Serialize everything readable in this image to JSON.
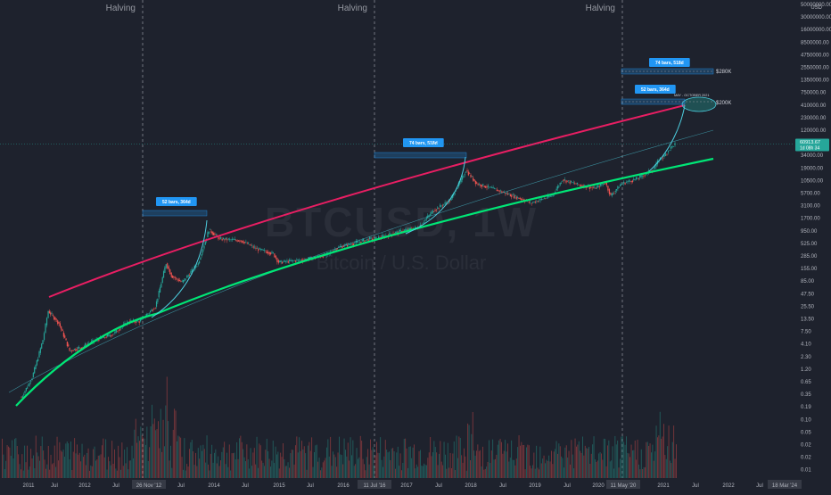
{
  "chart_data": {
    "type": "candlestick",
    "title": "",
    "watermark": {
      "symbol": "BTCUSD, 1W",
      "description": "Bitcoin / U.S. Dollar"
    },
    "y_axis": {
      "scale": "log",
      "unit": "USD",
      "ticks": [
        "50000000.00",
        "30000000.00",
        "16000000.00",
        "8500000.00",
        "4750000.00",
        "2550000.00",
        "1350000.00",
        "750000.00",
        "410000.00",
        "230000.00",
        "120000.00",
        "65000.00",
        "34000.00",
        "19000.00",
        "10500.00",
        "5700.00",
        "3100.00",
        "1700.00",
        "950.00",
        "525.00",
        "285.00",
        "155.00",
        "85.00",
        "47.50",
        "25.50",
        "13.50",
        "7.50",
        "4.10",
        "2.30",
        "1.20",
        "0.65",
        "0.35",
        "0.19",
        "0.10",
        "0.05",
        "0.02",
        "0.02",
        "0.01"
      ],
      "last_price": "60913.67",
      "countdown": "1d 08h 34"
    },
    "x_axis": {
      "ticks": [
        "2011",
        "Jul",
        "2012",
        "Jul",
        "26 Nov '12",
        "Jul",
        "2014",
        "Jul",
        "2015",
        "Jul",
        "2016",
        "11 Jul '16",
        "2017",
        "Jul",
        "2018",
        "Jul",
        "2019",
        "Jul",
        "2020",
        "11 May '20",
        "2021",
        "Jul",
        "2022",
        "Jul",
        "18 Mar '24"
      ],
      "highlighted": [
        "26 Nov '12",
        "11 Jul '16",
        "11 May '20",
        "18 Mar '24"
      ]
    },
    "halvings": [
      {
        "label": "Halving",
        "date": "26 Nov '12"
      },
      {
        "label": "Halving",
        "date": "11 Jul '16"
      },
      {
        "label": "Halving",
        "date": "11 May '20"
      }
    ],
    "callouts": [
      "52 bars, 364d",
      "74 bars, 518d",
      "74 bars, 518d",
      "52 bars, 364d"
    ],
    "targets": [
      "$280K",
      "$200K"
    ],
    "target_note": "MAY - OCTOBER 2021",
    "series": [
      {
        "name": "BTCUSD weekly",
        "points": [
          [
            "2011-01",
            0.3
          ],
          [
            "2011-03",
            0.8
          ],
          [
            "2011-05",
            5
          ],
          [
            "2011-06",
            20
          ],
          [
            "2011-08",
            11
          ],
          [
            "2011-10",
            3
          ],
          [
            "2011-12",
            3.5
          ],
          [
            "2012-03",
            5
          ],
          [
            "2012-06",
            6.5
          ],
          [
            "2012-09",
            12
          ],
          [
            "2012-11",
            12
          ],
          [
            "2013-02",
            25
          ],
          [
            "2013-04",
            200
          ],
          [
            "2013-05",
            110
          ],
          [
            "2013-07",
            80
          ],
          [
            "2013-10",
            200
          ],
          [
            "2013-12",
            1000
          ],
          [
            "2014-02",
            650
          ],
          [
            "2014-06",
            600
          ],
          [
            "2014-09",
            400
          ],
          [
            "2014-12",
            320
          ],
          [
            "2015-01",
            210
          ],
          [
            "2015-06",
            240
          ],
          [
            "2015-10",
            300
          ],
          [
            "2015-12",
            430
          ],
          [
            "2016-06",
            650
          ],
          [
            "2016-07",
            650
          ],
          [
            "2016-12",
            950
          ],
          [
            "2017-03",
            1100
          ],
          [
            "2017-06",
            2500
          ],
          [
            "2017-09",
            4000
          ],
          [
            "2017-12",
            17000
          ],
          [
            "2018-02",
            9000
          ],
          [
            "2018-06",
            6500
          ],
          [
            "2018-11",
            4000
          ],
          [
            "2018-12",
            3500
          ],
          [
            "2019-04",
            5000
          ],
          [
            "2019-06",
            11000
          ],
          [
            "2019-09",
            8500
          ],
          [
            "2019-12",
            7200
          ],
          [
            "2020-02",
            9500
          ],
          [
            "2020-03",
            5000
          ],
          [
            "2020-05",
            9000
          ],
          [
            "2020-08",
            11500
          ],
          [
            "2020-11",
            18000
          ],
          [
            "2020-12",
            28000
          ],
          [
            "2021-01",
            33000
          ],
          [
            "2021-02",
            48000
          ],
          [
            "2021-03",
            60913.67
          ]
        ]
      }
    ]
  }
}
